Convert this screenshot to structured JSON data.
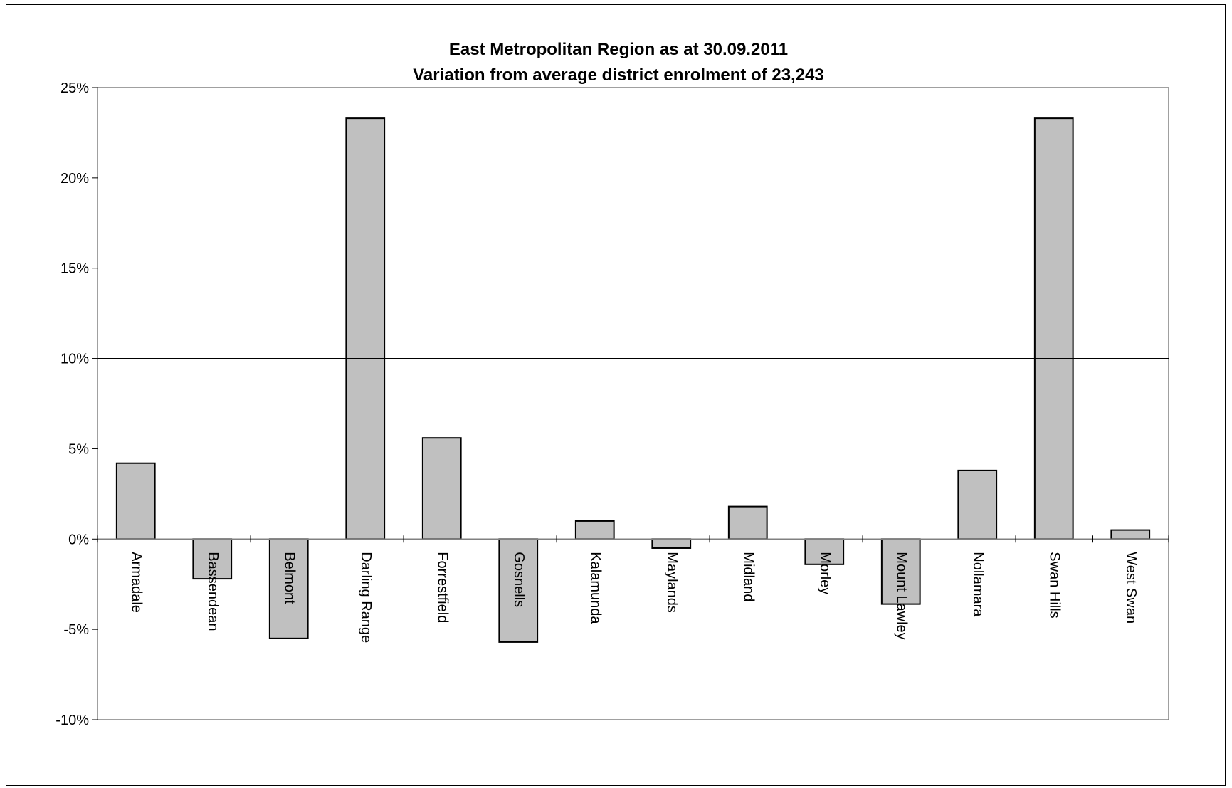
{
  "chart_data": {
    "type": "bar",
    "title": "East Metropolitan Region as at 30.09.2011",
    "subtitle": "Variation from average district enrolment of 23,243",
    "xlabel": "",
    "ylabel": "",
    "ylim": [
      -10,
      25
    ],
    "yticks": [
      -10,
      -5,
      0,
      5,
      10,
      15,
      20,
      25
    ],
    "ytick_labels": [
      "-10%",
      "-5%",
      "0%",
      "5%",
      "10%",
      "15%",
      "20%",
      "25%"
    ],
    "reference_line": 10,
    "grid": false,
    "legend": "none",
    "categories": [
      "Armadale",
      "Bassendean",
      "Belmont",
      "Darling Range",
      "Forrestfield",
      "Gosnells",
      "Kalamunda",
      "Maylands",
      "Midland",
      "Morley",
      "Mount Lawley",
      "Nollamara",
      "Swan Hills",
      "West Swan"
    ],
    "values": [
      4.2,
      -2.2,
      -5.5,
      23.3,
      5.6,
      -5.7,
      1.0,
      -0.5,
      1.8,
      -1.4,
      -3.6,
      3.8,
      23.3,
      0.5
    ],
    "colors": {
      "bar_fill": "#c0c0c0",
      "bar_stroke": "#000000",
      "axis": "#808080"
    }
  }
}
